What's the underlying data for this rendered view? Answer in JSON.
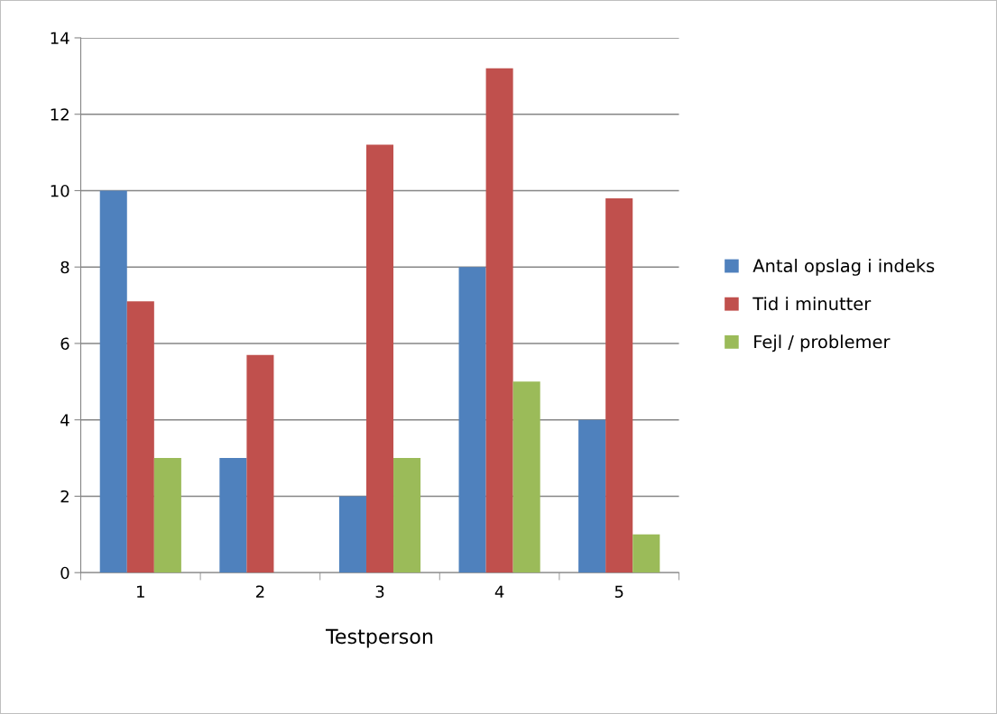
{
  "chart_data": {
    "type": "bar",
    "xlabel": "Testperson",
    "categories": [
      "1",
      "2",
      "3",
      "4",
      "5"
    ],
    "series": [
      {
        "name": "Antal opslag i indeks",
        "color": "#4f81bd",
        "values": [
          10,
          3,
          2,
          8,
          4
        ]
      },
      {
        "name": "Tid i minutter",
        "color": "#c0504d",
        "values": [
          7.1,
          5.7,
          11.2,
          13.2,
          9.8
        ]
      },
      {
        "name": "Fejl / problemer",
        "color": "#9bbb59",
        "values": [
          3,
          0,
          3,
          5,
          1
        ]
      }
    ],
    "ylim": [
      0,
      14
    ],
    "yticks": [
      0,
      2,
      4,
      6,
      8,
      10,
      12,
      14
    ],
    "grid": "y",
    "legend": "right"
  }
}
